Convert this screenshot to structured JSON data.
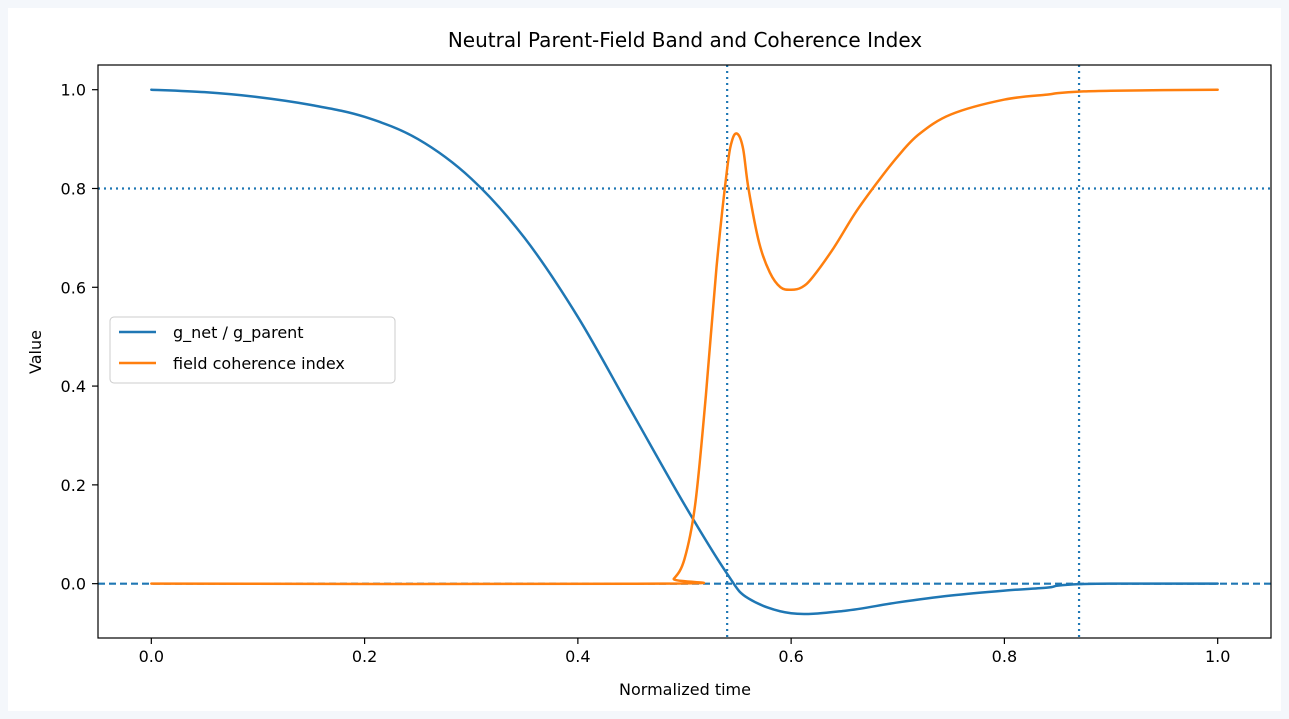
{
  "chart_data": {
    "type": "line",
    "title": "Neutral Parent-Field Band and Coherence Index",
    "xlabel": "Normalized time",
    "ylabel": "Value",
    "xlim": [
      -0.05,
      1.05
    ],
    "ylim": [
      -0.11,
      1.05
    ],
    "xticks": [
      0.0,
      0.2,
      0.4,
      0.6,
      0.8,
      1.0
    ],
    "xtick_labels": [
      "0.0",
      "0.2",
      "0.4",
      "0.6",
      "0.8",
      "1.0"
    ],
    "yticks": [
      0.0,
      0.2,
      0.4,
      0.6,
      0.8,
      1.0
    ],
    "ytick_labels": [
      "0.0",
      "0.2",
      "0.4",
      "0.6",
      "0.8",
      "1.0"
    ],
    "grid": false,
    "legend_position": "center-left",
    "series": [
      {
        "name": "g_net / g_parent",
        "color": "#1f77b4",
        "x": [
          0.0,
          0.05,
          0.1,
          0.15,
          0.2,
          0.25,
          0.3,
          0.35,
          0.4,
          0.45,
          0.5,
          0.54,
          0.56,
          0.6,
          0.65,
          0.7,
          0.75,
          0.8,
          0.84,
          0.85,
          0.87,
          0.9,
          1.0
        ],
        "y": [
          1.0,
          0.995,
          0.985,
          0.969,
          0.945,
          0.9,
          0.82,
          0.7,
          0.54,
          0.35,
          0.16,
          0.02,
          -0.03,
          -0.06,
          -0.055,
          -0.038,
          -0.024,
          -0.014,
          -0.008,
          -0.004,
          -0.001,
          0.0,
          0.0
        ]
      },
      {
        "name": "field coherence index",
        "color": "#ff7f0e",
        "x": [
          0.0,
          0.48,
          0.49,
          0.5,
          0.51,
          0.52,
          0.53,
          0.54,
          0.545,
          0.55,
          0.555,
          0.56,
          0.57,
          0.58,
          0.59,
          0.6,
          0.61,
          0.62,
          0.64,
          0.66,
          0.68,
          0.7,
          0.72,
          0.75,
          0.8,
          0.84,
          0.85,
          0.87,
          0.9,
          1.0
        ],
        "y": [
          0.0,
          0.0,
          0.01,
          0.05,
          0.16,
          0.38,
          0.64,
          0.84,
          0.9,
          0.91,
          0.88,
          0.8,
          0.69,
          0.63,
          0.6,
          0.595,
          0.6,
          0.62,
          0.68,
          0.75,
          0.81,
          0.865,
          0.91,
          0.95,
          0.98,
          0.99,
          0.993,
          0.996,
          0.998,
          1.0
        ]
      }
    ],
    "reference_lines": [
      {
        "orientation": "horizontal",
        "value": 0.8,
        "style": "dotted",
        "color": "#1f77b4"
      },
      {
        "orientation": "horizontal",
        "value": 0.0,
        "style": "dashed",
        "color": "#1f77b4"
      },
      {
        "orientation": "vertical",
        "value": 0.54,
        "style": "dotted",
        "color": "#1f77b4"
      },
      {
        "orientation": "vertical",
        "value": 0.87,
        "style": "dotted",
        "color": "#1f77b4"
      }
    ]
  }
}
